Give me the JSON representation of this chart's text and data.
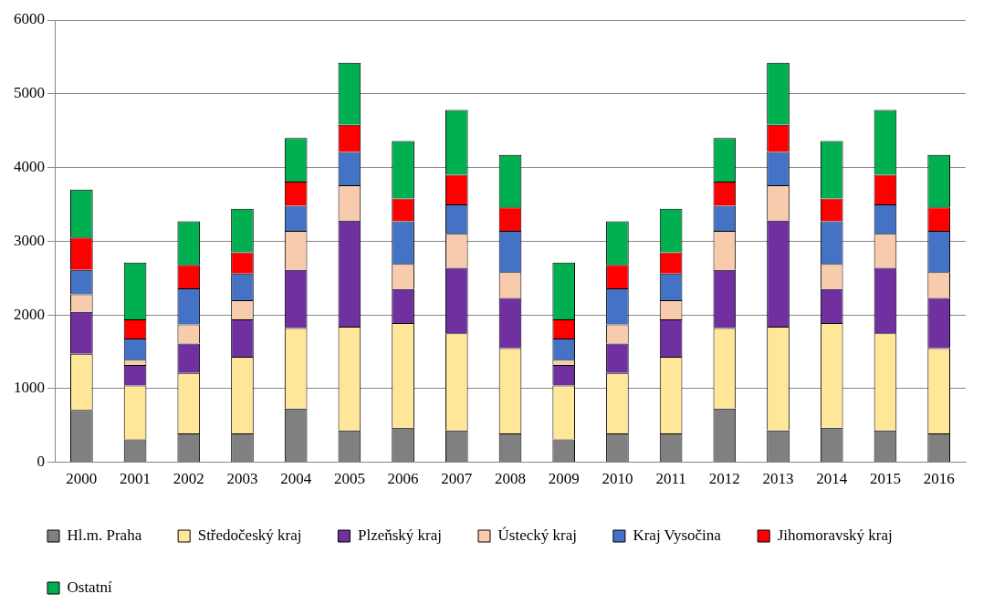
{
  "chart_data": {
    "type": "bar",
    "stacked": true,
    "categories": [
      "2000",
      "2001",
      "2002",
      "2003",
      "2004",
      "2005",
      "2006",
      "2007",
      "2008",
      "2009",
      "2010",
      "2011",
      "2012",
      "2013",
      "2014",
      "2015",
      "2016"
    ],
    "series": [
      {
        "name": "Hl.m. Praha",
        "color": "#808080",
        "values": [
          710,
          310,
          390,
          390,
          730,
          430,
          470,
          430,
          390,
          310,
          390,
          390,
          730,
          430,
          470,
          430,
          390
        ]
      },
      {
        "name": "Středočeský kraj",
        "color": "#ffe699",
        "values": [
          760,
          730,
          820,
          1040,
          1090,
          1410,
          1420,
          1320,
          1160,
          730,
          820,
          1040,
          1090,
          1410,
          1420,
          1320,
          1160
        ]
      },
      {
        "name": "Plzeňský kraj",
        "color": "#7030a0",
        "values": [
          570,
          280,
          400,
          510,
          790,
          1440,
          460,
          890,
          680,
          280,
          400,
          510,
          790,
          1440,
          460,
          890,
          680
        ]
      },
      {
        "name": "Ústecký kraj",
        "color": "#f8cbad",
        "values": [
          240,
          70,
          260,
          260,
          530,
          480,
          340,
          460,
          350,
          70,
          260,
          260,
          530,
          480,
          340,
          460,
          350
        ]
      },
      {
        "name": "Kraj Vysočina",
        "color": "#4472c4",
        "values": [
          330,
          290,
          490,
          360,
          340,
          450,
          580,
          400,
          560,
          290,
          490,
          360,
          340,
          450,
          580,
          400,
          560
        ]
      },
      {
        "name": "Jihomoravský kraj",
        "color": "#ff0000",
        "values": [
          440,
          260,
          320,
          290,
          330,
          370,
          310,
          400,
          320,
          260,
          320,
          290,
          330,
          370,
          310,
          400,
          320
        ]
      },
      {
        "name": "Ostatní",
        "color": "#00b050",
        "values": [
          650,
          770,
          590,
          590,
          590,
          840,
          780,
          880,
          710,
          770,
          590,
          590,
          590,
          840,
          780,
          880,
          710
        ]
      }
    ],
    "ylim": [
      0,
      6000
    ],
    "yticks": [
      0,
      1000,
      2000,
      3000,
      4000,
      5000,
      6000
    ],
    "grid": "y",
    "legend": "bottom"
  }
}
